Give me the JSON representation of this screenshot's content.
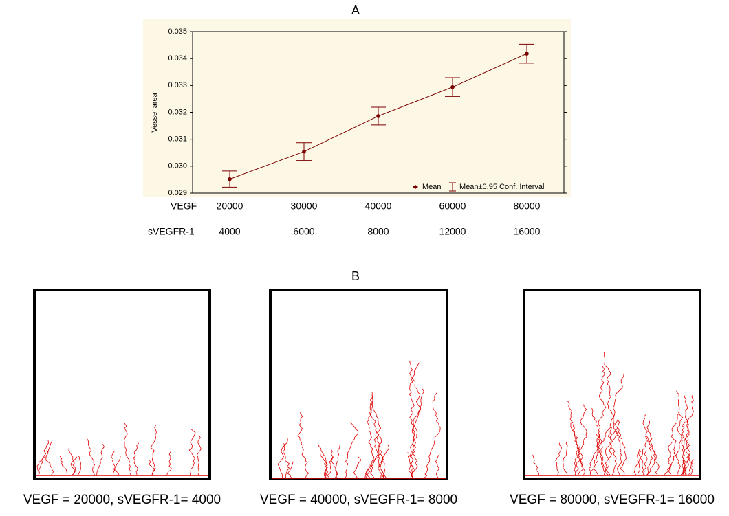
{
  "chart_data": {
    "type": "line",
    "title": "A",
    "ylabel": "Vessel area",
    "x_label": "VEGF",
    "categories": [
      "20000",
      "30000",
      "40000",
      "60000",
      "80000"
    ],
    "x2_label": "sVEGFR-1",
    "categories2": [
      "4000",
      "6000",
      "8000",
      "12000",
      "16000"
    ],
    "series": [
      {
        "name": "Mean",
        "color": "#7a0000",
        "values": [
          0.02952,
          0.03054,
          0.03186,
          0.03294,
          0.03418
        ],
        "errors": [
          0.0003,
          0.00033,
          0.00033,
          0.00035,
          0.00035
        ]
      }
    ],
    "error_legend": "Mean±0.95 Conf. Interval",
    "ylim": [
      0.029,
      0.035
    ],
    "yticks": [
      0.029,
      {
        "value": 0.03,
        "label": "0.030"
      },
      0.031,
      0.032,
      0.033,
      0.034,
      0.035
    ]
  },
  "panel_b": {
    "title": "B",
    "panels": [
      {
        "caption": "VEGF = 20000, sVEGFR-1= 4000"
      },
      {
        "caption": "VEGF = 40000, sVEGFR-1= 8000"
      },
      {
        "caption": "VEGF = 80000, sVEGFR-1= 16000"
      }
    ]
  }
}
